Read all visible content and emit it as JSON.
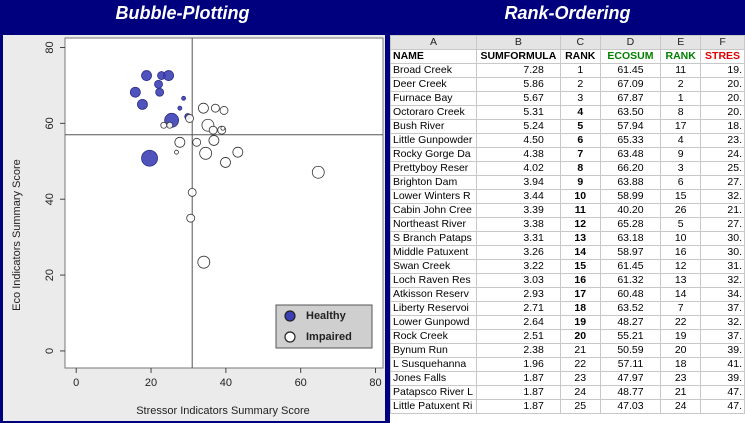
{
  "chart_data": {
    "type": "bubble",
    "title": "Bubble-Plotting",
    "xlabel": "Stressor Indicators Summary Score",
    "ylabel": "Eco Indicators Summary Score",
    "xlim": [
      -3,
      82
    ],
    "ylim": [
      -4.5,
      82.5
    ],
    "xticks": [
      0,
      20,
      40,
      60,
      80
    ],
    "yticks": [
      0,
      20,
      40,
      60,
      80
    ],
    "reference_lines": {
      "x": 31,
      "y": 57
    },
    "legend": "lower right",
    "series": [
      {
        "name": "Healthy",
        "color": "#3c40b4",
        "x": [
          18.8,
          22.8,
          24.7,
          15.8,
          22,
          22.3,
          17.7,
          19.6,
          25.5,
          28.7,
          27.7,
          29.8
        ],
        "y": [
          72.6,
          72.6,
          72.6,
          68.2,
          70.3,
          68.2,
          65,
          50.8,
          60.8,
          66.6,
          64,
          61.8
        ],
        "sizes": [
          5,
          4,
          5,
          5,
          4,
          4,
          5,
          8,
          7,
          2,
          2,
          3
        ]
      },
      {
        "name": "Impaired",
        "color": "#ffffff",
        "x": [
          64.7,
          34.1,
          30.6,
          31,
          39.5,
          37.2,
          34,
          35.2,
          36.6,
          38.9,
          36.8,
          34.6,
          39.9,
          43.2,
          27.7,
          26.8,
          23.4,
          25,
          30.3,
          32.2,
          39.2
        ],
        "y": [
          47.1,
          23.4,
          35,
          41.8,
          63.4,
          64,
          64,
          59.5,
          58.2,
          58.2,
          55.5,
          52.1,
          49.7,
          52.4,
          55,
          52.4,
          59.5,
          59.5,
          61.3,
          55,
          58.7
        ],
        "sizes": [
          6,
          6,
          4,
          4,
          4,
          4,
          5,
          6,
          4,
          4,
          5,
          6,
          5,
          5,
          5,
          2,
          3,
          3,
          4,
          4,
          2
        ]
      }
    ]
  },
  "spreadsheet": {
    "title": "Rank-Ordering",
    "column_letters": [
      "A",
      "B",
      "C",
      "D",
      "E",
      "F"
    ],
    "header": [
      "NAME",
      "SUMFORMULA",
      "RANK",
      "ECOSUM",
      "RANK",
      "STRES"
    ],
    "header_colors": [
      "#000000",
      "#000000",
      "#000000",
      "#008000",
      "#008000",
      "#e00000"
    ],
    "rows": [
      [
        "Broad Creek",
        "7.28",
        "1",
        "61.45",
        "11",
        "19."
      ],
      [
        "Deer Creek",
        "5.86",
        "2",
        "67.09",
        "2",
        "20."
      ],
      [
        "Furnace Bay",
        "5.67",
        "3",
        "67.87",
        "1",
        "20."
      ],
      [
        "Octoraro Creek",
        "5.31",
        "4",
        "63.50",
        "8",
        "20."
      ],
      [
        "Bush River",
        "5.24",
        "5",
        "57.94",
        "17",
        "18."
      ],
      [
        "Little Gunpowder",
        "4.50",
        "6",
        "65.33",
        "4",
        "23."
      ],
      [
        "Rocky Gorge Da",
        "4.38",
        "7",
        "63.48",
        "9",
        "24."
      ],
      [
        "Prettyboy Reser",
        "4.02",
        "8",
        "66.20",
        "3",
        "25."
      ],
      [
        "Brighton Dam",
        "3.94",
        "9",
        "63.88",
        "6",
        "27."
      ],
      [
        "Lower Winters R",
        "3.44",
        "10",
        "58.99",
        "15",
        "32."
      ],
      [
        "Cabin John Cree",
        "3.39",
        "11",
        "40.20",
        "26",
        "21."
      ],
      [
        "Northeast River",
        "3.38",
        "12",
        "65.28",
        "5",
        "27."
      ],
      [
        "S Branch Pataps",
        "3.31",
        "13",
        "63.18",
        "10",
        "30."
      ],
      [
        "Middle Patuxent",
        "3.26",
        "14",
        "58.97",
        "16",
        "30."
      ],
      [
        "Swan Creek",
        "3.22",
        "15",
        "61.45",
        "12",
        "31."
      ],
      [
        "Loch Raven Res",
        "3.03",
        "16",
        "61.32",
        "13",
        "32."
      ],
      [
        "Atkisson Reserv",
        "2.93",
        "17",
        "60.48",
        "14",
        "34."
      ],
      [
        "Liberty Reservoi",
        "2.71",
        "18",
        "63.52",
        "7",
        "37."
      ],
      [
        "Lower Gunpowd",
        "2.64",
        "19",
        "48.27",
        "22",
        "32."
      ],
      [
        "Rock Creek",
        "2.51",
        "20",
        "55.21",
        "19",
        "37."
      ],
      [
        "Bynum Run",
        "2.38",
        "21",
        "50.59",
        "20",
        "39."
      ],
      [
        "L Susquehanna",
        "1.96",
        "22",
        "57.11",
        "18",
        "41."
      ],
      [
        "Jones Falls",
        "1.87",
        "23",
        "47.97",
        "23",
        "39."
      ],
      [
        "Patapsco River L",
        "1.87",
        "24",
        "48.77",
        "21",
        "47."
      ],
      [
        "Little Patuxent Ri",
        "1.87",
        "25",
        "47.03",
        "24",
        "47."
      ]
    ]
  }
}
